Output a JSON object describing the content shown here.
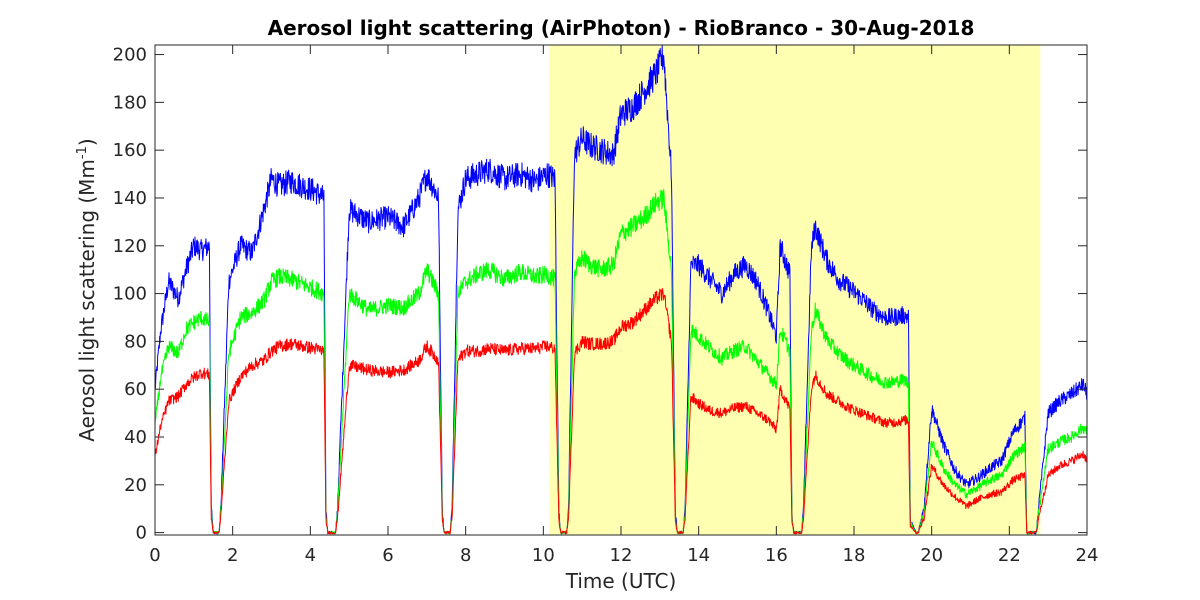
{
  "chart_data": {
    "type": "line",
    "title": "Aerosol light scattering (AirPhoton) - RioBranco - 30-Aug-2018",
    "xlabel": "Time (UTC)",
    "ylabel_main": "Aerosol light scattering (Mm",
    "ylabel_sup": "-1",
    "ylabel_close": ")",
    "xlim": [
      0,
      24
    ],
    "ylim": [
      -1,
      204
    ],
    "xticks": [
      0,
      2,
      4,
      6,
      8,
      10,
      12,
      14,
      16,
      18,
      20,
      22,
      24
    ],
    "yticks": [
      0,
      20,
      40,
      60,
      80,
      100,
      120,
      140,
      160,
      180,
      200
    ],
    "grid": false,
    "highlight": {
      "x_start": 10.15,
      "x_end": 22.8,
      "color": "#ffffb2"
    },
    "series": [
      {
        "color": "#0000ff",
        "noise": 4,
        "x": [
          0,
          0.15,
          0.35,
          0.6,
          0.8,
          1.0,
          1.2,
          1.4,
          1.45,
          1.5,
          1.65,
          1.7,
          1.9,
          2.2,
          2.5,
          2.8,
          3.0,
          3.2,
          3.5,
          3.8,
          4.1,
          4.35,
          4.4,
          4.45,
          4.65,
          4.7,
          5.0,
          5.5,
          6.0,
          6.4,
          6.8,
          7.0,
          7.3,
          7.4,
          7.45,
          7.6,
          7.65,
          7.8,
          8.0,
          8.3,
          8.6,
          9.0,
          9.4,
          9.8,
          10.1,
          10.3,
          10.4,
          10.45,
          10.6,
          10.65,
          10.8,
          11.0,
          11.2,
          11.5,
          11.8,
          12.0,
          12.3,
          12.6,
          12.9,
          13.1,
          13.3,
          13.4,
          13.45,
          13.6,
          13.65,
          13.8,
          14.0,
          14.3,
          14.6,
          14.9,
          15.2,
          15.5,
          15.8,
          16.0,
          16.1,
          16.35,
          16.4,
          16.45,
          16.65,
          16.7,
          16.9,
          17.0,
          17.3,
          17.6,
          17.9,
          18.2,
          18.5,
          18.8,
          19.0,
          19.3,
          19.4,
          19.45,
          19.6,
          19.65,
          19.8,
          20.0,
          20.3,
          20.6,
          20.9,
          21.2,
          21.5,
          21.8,
          22.1,
          22.4,
          22.45,
          22.5,
          22.7,
          22.75,
          23.0,
          23.3,
          23.6,
          23.9,
          24.0
        ],
        "y": [
          60,
          85,
          105,
          98,
          110,
          120,
          118,
          120,
          10,
          0,
          0,
          12,
          105,
          120,
          117,
          135,
          148,
          145,
          147,
          145,
          143,
          140,
          10,
          0,
          0,
          10,
          135,
          130,
          132,
          128,
          140,
          150,
          140,
          8,
          0,
          0,
          10,
          135,
          148,
          150,
          152,
          148,
          150,
          147,
          150,
          148,
          8,
          0,
          0,
          10,
          158,
          165,
          162,
          160,
          158,
          175,
          178,
          185,
          192,
          200,
          150,
          8,
          0,
          0,
          10,
          112,
          112,
          106,
          100,
          108,
          112,
          105,
          92,
          82,
          120,
          108,
          8,
          0,
          0,
          10,
          118,
          128,
          114,
          106,
          102,
          98,
          93,
          90,
          90,
          91,
          90,
          5,
          0,
          0,
          10,
          52,
          37,
          26,
          20,
          23,
          27,
          30,
          42,
          48,
          0,
          0,
          0,
          10,
          50,
          55,
          58,
          62,
          58
        ]
      },
      {
        "color": "#00ff00",
        "noise": 3.5,
        "x": [
          0,
          0.15,
          0.35,
          0.6,
          0.8,
          1.0,
          1.2,
          1.4,
          1.45,
          1.5,
          1.65,
          1.7,
          1.9,
          2.2,
          2.5,
          2.8,
          3.0,
          3.2,
          3.5,
          3.8,
          4.1,
          4.35,
          4.4,
          4.45,
          4.65,
          4.7,
          5.0,
          5.5,
          6.0,
          6.4,
          6.8,
          7.0,
          7.3,
          7.4,
          7.45,
          7.6,
          7.65,
          7.8,
          8.0,
          8.3,
          8.6,
          9.0,
          9.4,
          9.8,
          10.1,
          10.3,
          10.4,
          10.45,
          10.6,
          10.65,
          10.8,
          11.0,
          11.2,
          11.5,
          11.8,
          12.0,
          12.3,
          12.6,
          12.9,
          13.1,
          13.3,
          13.4,
          13.45,
          13.6,
          13.65,
          13.8,
          14.0,
          14.3,
          14.6,
          14.9,
          15.2,
          15.5,
          15.8,
          16.0,
          16.1,
          16.35,
          16.4,
          16.45,
          16.65,
          16.7,
          16.9,
          17.0,
          17.3,
          17.6,
          17.9,
          18.2,
          18.5,
          18.8,
          19.0,
          19.3,
          19.4,
          19.45,
          19.6,
          19.65,
          19.8,
          20.0,
          20.3,
          20.6,
          20.9,
          21.2,
          21.5,
          21.8,
          22.1,
          22.4,
          22.45,
          22.5,
          22.7,
          22.75,
          23.0,
          23.3,
          23.6,
          23.9,
          24.0
        ],
        "y": [
          45,
          65,
          78,
          75,
          85,
          88,
          90,
          88,
          8,
          0,
          0,
          10,
          75,
          90,
          92,
          97,
          105,
          107,
          106,
          104,
          102,
          100,
          8,
          0,
          0,
          8,
          100,
          93,
          95,
          94,
          100,
          110,
          100,
          6,
          0,
          0,
          8,
          100,
          105,
          108,
          110,
          106,
          109,
          107,
          108,
          106,
          6,
          0,
          0,
          8,
          108,
          115,
          112,
          110,
          112,
          125,
          128,
          132,
          138,
          140,
          110,
          6,
          0,
          0,
          8,
          85,
          82,
          77,
          73,
          76,
          78,
          72,
          66,
          62,
          85,
          76,
          6,
          0,
          0,
          8,
          84,
          93,
          81,
          75,
          71,
          68,
          65,
          63,
          63,
          64,
          62,
          4,
          0,
          0,
          8,
          38,
          27,
          20,
          16,
          19,
          22,
          24,
          32,
          36,
          0,
          0,
          0,
          8,
          35,
          38,
          40,
          44,
          42
        ]
      },
      {
        "color": "#ff0000",
        "noise": 3,
        "x": [
          0,
          0.15,
          0.35,
          0.6,
          0.8,
          1.0,
          1.2,
          1.4,
          1.45,
          1.5,
          1.65,
          1.7,
          1.9,
          2.2,
          2.5,
          2.8,
          3.0,
          3.2,
          3.5,
          3.8,
          4.1,
          4.35,
          4.4,
          4.45,
          4.65,
          4.7,
          5.0,
          5.5,
          6.0,
          6.4,
          6.8,
          7.0,
          7.3,
          7.4,
          7.45,
          7.6,
          7.65,
          7.8,
          8.0,
          8.3,
          8.6,
          9.0,
          9.4,
          9.8,
          10.1,
          10.3,
          10.4,
          10.45,
          10.6,
          10.65,
          10.8,
          11.0,
          11.2,
          11.5,
          11.8,
          12.0,
          12.3,
          12.6,
          12.9,
          13.1,
          13.3,
          13.4,
          13.45,
          13.6,
          13.65,
          13.8,
          14.0,
          14.3,
          14.6,
          14.9,
          15.2,
          15.5,
          15.8,
          16.0,
          16.1,
          16.35,
          16.4,
          16.45,
          16.65,
          16.7,
          16.9,
          17.0,
          17.3,
          17.6,
          17.9,
          18.2,
          18.5,
          18.8,
          19.0,
          19.3,
          19.4,
          19.45,
          19.6,
          19.65,
          19.8,
          20.0,
          20.3,
          20.6,
          20.9,
          21.2,
          21.5,
          21.8,
          22.1,
          22.4,
          22.45,
          22.5,
          22.7,
          22.75,
          23.0,
          23.3,
          23.6,
          23.9,
          24.0
        ],
        "y": [
          32,
          45,
          55,
          57,
          62,
          65,
          67,
          66,
          6,
          0,
          0,
          8,
          55,
          65,
          70,
          72,
          76,
          78,
          79,
          78,
          77,
          76,
          6,
          0,
          0,
          6,
          70,
          68,
          67,
          68,
          72,
          78,
          72,
          5,
          0,
          0,
          6,
          72,
          76,
          76,
          77,
          76,
          77,
          77,
          78,
          77,
          5,
          0,
          0,
          6,
          75,
          80,
          79,
          79,
          80,
          86,
          88,
          93,
          98,
          100,
          80,
          5,
          0,
          0,
          6,
          57,
          54,
          51,
          50,
          52,
          53,
          50,
          47,
          43,
          60,
          52,
          5,
          0,
          0,
          6,
          60,
          66,
          58,
          55,
          52,
          50,
          48,
          46,
          46,
          47,
          47,
          3,
          0,
          0,
          6,
          28,
          20,
          15,
          11,
          14,
          16,
          17,
          22,
          24,
          0,
          0,
          0,
          6,
          24,
          28,
          30,
          33,
          30
        ]
      }
    ]
  }
}
